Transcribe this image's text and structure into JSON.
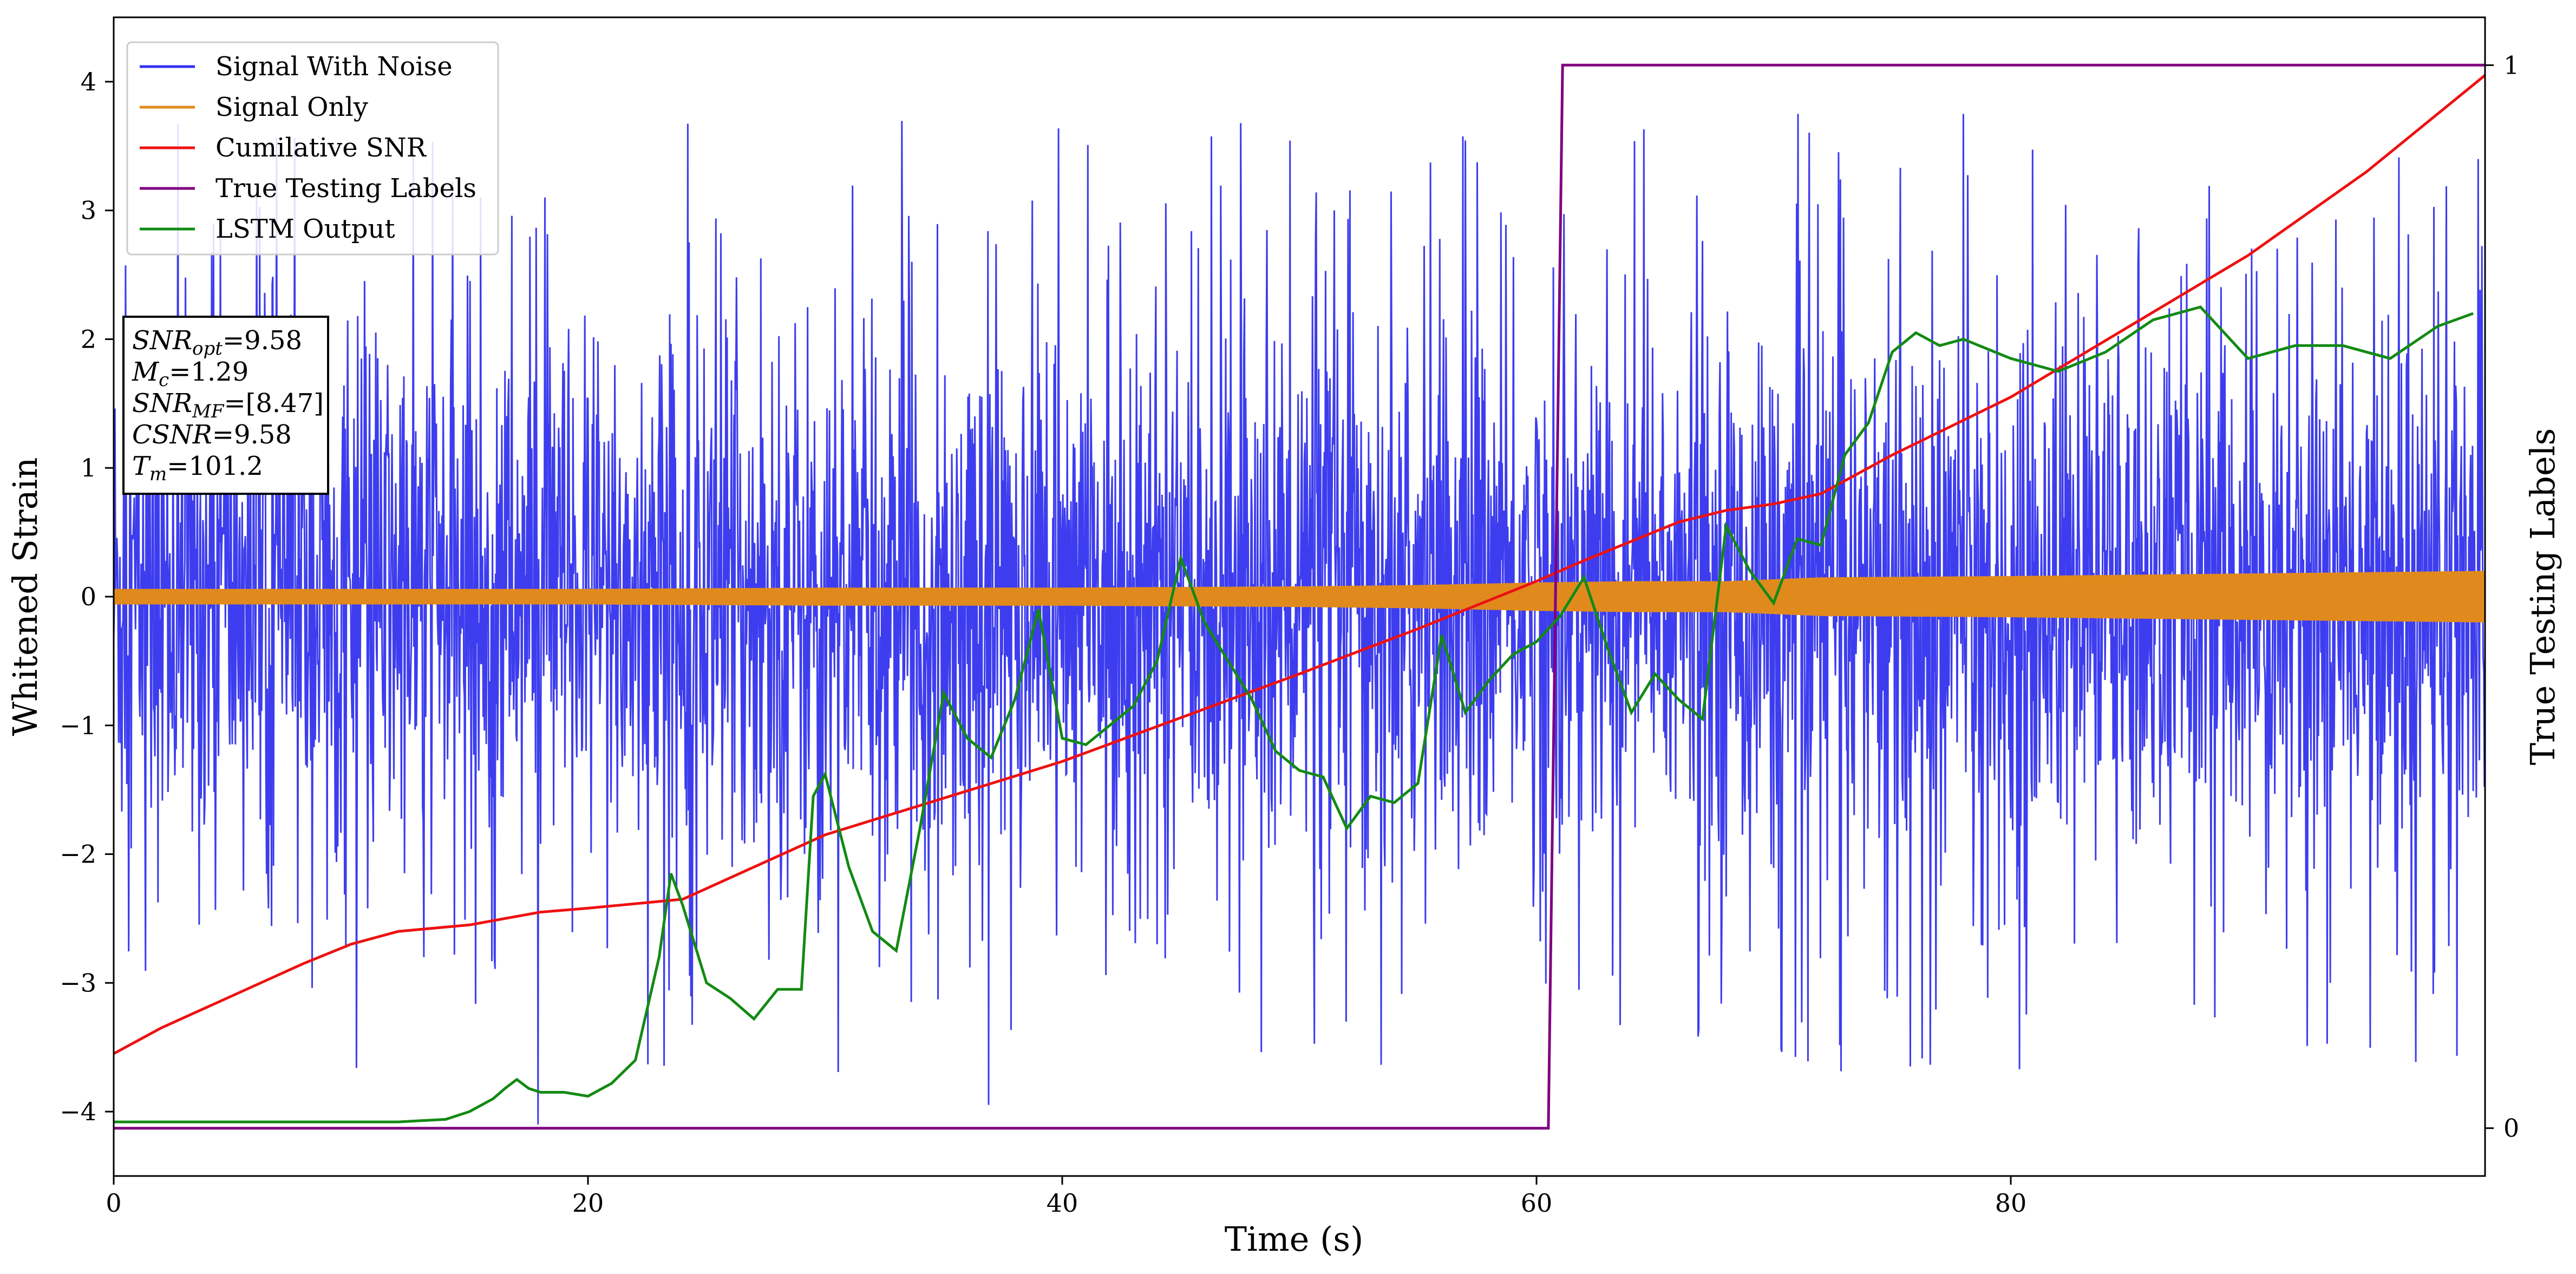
{
  "chart_data": {
    "type": "line",
    "xlabel": "Time (s)",
    "ylabel": "Whitened Strain",
    "y2label": "True Testing Labels",
    "xlim": [
      0,
      100
    ],
    "ylim": [
      -4.5,
      4.5
    ],
    "y2lim": [
      -0.045,
      1.045
    ],
    "x_ticks": [
      0,
      20,
      40,
      60,
      80
    ],
    "y_ticks": [
      -4,
      -3,
      -2,
      -1,
      0,
      1,
      2,
      3,
      4
    ],
    "y2_ticks": [
      0,
      1
    ],
    "legend_position": "top-left",
    "grid": false,
    "annotation_lines": [
      {
        "label": "SNR",
        "sub": "opt",
        "rest": "=9.58"
      },
      {
        "label": "M",
        "sub": "c",
        "rest": "=1.29"
      },
      {
        "label": "SNR",
        "sub": "MF",
        "rest": "=[8.47]"
      },
      {
        "label": "CSNR",
        "sub": "",
        "rest": "=9.58"
      },
      {
        "label": "T",
        "sub": "m",
        "rest": "=101.2"
      }
    ],
    "series": [
      {
        "name": "Signal With Noise",
        "color": "#3333ee",
        "axis": "left",
        "note": "noise band, roughly ±1.5 core with spikes up to +3.7 / -4.1",
        "x": [
          0,
          100
        ],
        "y": [
          0,
          0
        ]
      },
      {
        "name": "Signal Only",
        "color": "#e08a1e",
        "axis": "left",
        "envelope_x": [
          0,
          10,
          20,
          30,
          40,
          50,
          55,
          60,
          64,
          68,
          72,
          80,
          90,
          100
        ],
        "envelope_amp": [
          0.06,
          0.06,
          0.06,
          0.07,
          0.07,
          0.08,
          0.09,
          0.11,
          0.12,
          0.12,
          0.15,
          0.16,
          0.18,
          0.2
        ]
      },
      {
        "name": "Cumilative SNR",
        "color": "#ee1111",
        "axis": "left",
        "x": [
          0,
          2,
          5,
          8,
          10,
          12,
          15,
          18,
          20,
          24,
          30,
          40,
          50,
          55,
          60,
          62,
          66,
          68,
          70,
          72,
          75,
          80,
          85,
          90,
          95,
          100
        ],
        "y": [
          -3.55,
          -3.35,
          -3.1,
          -2.85,
          -2.7,
          -2.6,
          -2.55,
          -2.45,
          -2.42,
          -2.35,
          -1.85,
          -1.28,
          -0.6,
          -0.25,
          0.12,
          0.28,
          0.58,
          0.67,
          0.72,
          0.8,
          1.1,
          1.55,
          2.1,
          2.65,
          3.3,
          4.05
        ]
      },
      {
        "name": "True Testing Labels",
        "color": "#800080",
        "axis": "right",
        "x": [
          0,
          60.5,
          61.1,
          100
        ],
        "y": [
          0,
          0,
          1,
          1
        ]
      },
      {
        "name": "LSTM Output",
        "color": "#138a13",
        "axis": "left",
        "x": [
          0,
          12,
          14,
          15,
          16,
          16.5,
          17,
          17.5,
          18,
          19,
          20,
          21,
          22,
          23,
          23.5,
          24,
          25,
          26,
          27,
          28,
          29,
          29.5,
          30,
          31,
          32,
          33,
          34,
          35,
          36,
          37,
          38,
          39,
          40,
          41,
          42,
          43,
          44,
          45,
          46,
          47,
          48,
          49,
          50,
          51,
          52,
          53,
          54,
          55,
          56,
          57,
          58,
          59,
          60,
          61,
          62,
          63,
          64,
          65,
          66,
          67,
          68,
          69,
          70,
          71,
          72,
          73,
          74,
          75,
          76,
          77,
          78,
          80,
          82,
          84,
          86,
          88,
          90,
          92,
          94,
          96,
          98,
          99.5
        ],
        "y": [
          -4.08,
          -4.08,
          -4.06,
          -4.0,
          -3.9,
          -3.82,
          -3.75,
          -3.82,
          -3.85,
          -3.85,
          -3.88,
          -3.78,
          -3.6,
          -2.8,
          -2.15,
          -2.4,
          -3.0,
          -3.12,
          -3.28,
          -3.05,
          -3.05,
          -1.55,
          -1.38,
          -2.1,
          -2.6,
          -2.75,
          -1.8,
          -0.75,
          -1.1,
          -1.25,
          -0.8,
          -0.1,
          -1.1,
          -1.15,
          -1.0,
          -0.85,
          -0.5,
          0.3,
          -0.2,
          -0.5,
          -0.8,
          -1.2,
          -1.35,
          -1.4,
          -1.8,
          -1.55,
          -1.6,
          -1.45,
          -0.3,
          -0.9,
          -0.65,
          -0.45,
          -0.35,
          -0.15,
          0.15,
          -0.4,
          -0.9,
          -0.6,
          -0.8,
          -0.95,
          0.55,
          0.2,
          -0.05,
          0.45,
          0.4,
          1.1,
          1.35,
          1.9,
          2.05,
          1.95,
          2.0,
          1.85,
          1.75,
          1.9,
          2.15,
          2.25,
          1.85,
          1.95,
          1.95,
          1.85,
          2.1,
          2.2
        ]
      }
    ]
  }
}
